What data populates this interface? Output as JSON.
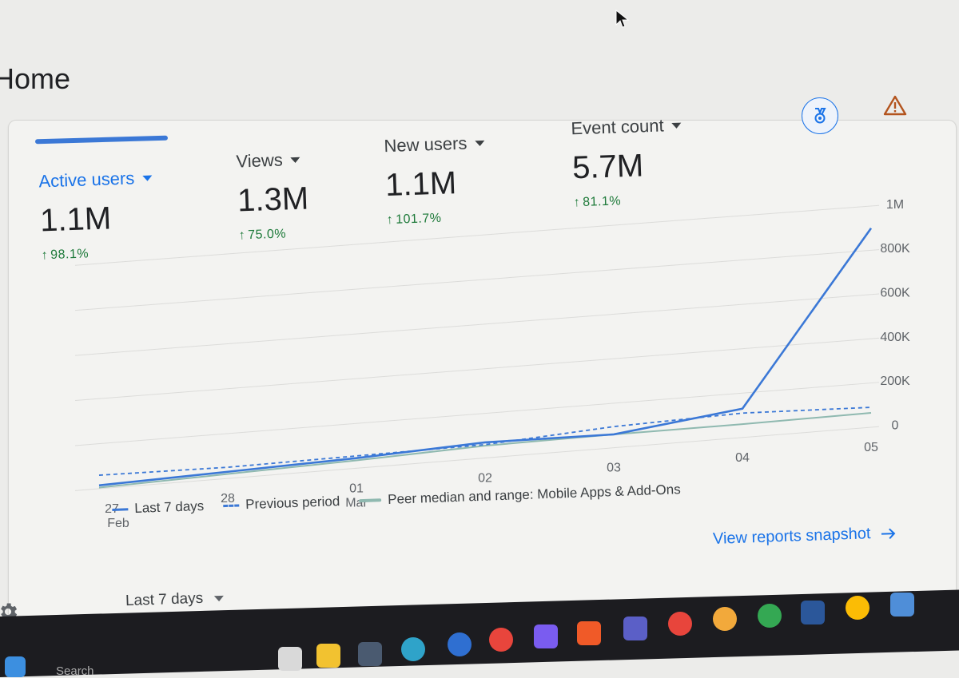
{
  "page": {
    "title": "Home"
  },
  "metrics": [
    {
      "label": "Active users",
      "value": "1.1M",
      "change": "98.1%"
    },
    {
      "label": "Views",
      "value": "1.3M",
      "change": "75.0%"
    },
    {
      "label": "New users",
      "value": "1.1M",
      "change": "101.7%"
    },
    {
      "label": "Event count",
      "value": "5.7M",
      "change": "81.1%"
    }
  ],
  "icons": {
    "medal": "medal-icon",
    "alert": "warning-icon",
    "settings": "gear-icon",
    "link_arrow": "arrow-right-icon"
  },
  "colors": {
    "accent": "#1a73e8",
    "last7": "#3b78d6",
    "peer": "#8fb9b0",
    "positive": "#1e7a3a"
  },
  "chart_data": {
    "type": "line",
    "categories": [
      "27 Feb",
      "28",
      "01 Mar",
      "02",
      "03",
      "04",
      "05"
    ],
    "x_ticks": [
      {
        "top": "27",
        "bottom": "Feb"
      },
      {
        "top": "28",
        "bottom": ""
      },
      {
        "top": "01",
        "bottom": "Mar"
      },
      {
        "top": "02",
        "bottom": ""
      },
      {
        "top": "03",
        "bottom": ""
      },
      {
        "top": "04",
        "bottom": ""
      },
      {
        "top": "05",
        "bottom": ""
      }
    ],
    "y_ticks": [
      "0",
      "200K",
      "400K",
      "600K",
      "800K",
      "1M"
    ],
    "ylim": [
      0,
      1000000
    ],
    "series": [
      {
        "name": "Last 7 days",
        "style": "solid",
        "values": [
          15000,
          30000,
          45000,
          70000,
          60000,
          130000,
          900000
        ]
      },
      {
        "name": "Previous period",
        "style": "dashed",
        "values": [
          60000,
          50000,
          55000,
          60000,
          95000,
          110000,
          90000
        ]
      },
      {
        "name": "Peer median and range: Mobile Apps & Add-Ons",
        "style": "peer",
        "values": [
          5000,
          20000,
          35000,
          55000,
          60000,
          60000,
          65000
        ]
      }
    ],
    "legend_position": "bottom-left",
    "grid": true
  },
  "legend": {
    "last7": "Last 7 days",
    "previous": "Previous period",
    "peer": "Peer median and range: Mobile Apps & Add-Ons"
  },
  "links": {
    "view_reports": "View reports snapshot"
  },
  "date_range": {
    "selected": "Last 7 days"
  },
  "taskbar": {
    "search_placeholder": "Search"
  }
}
